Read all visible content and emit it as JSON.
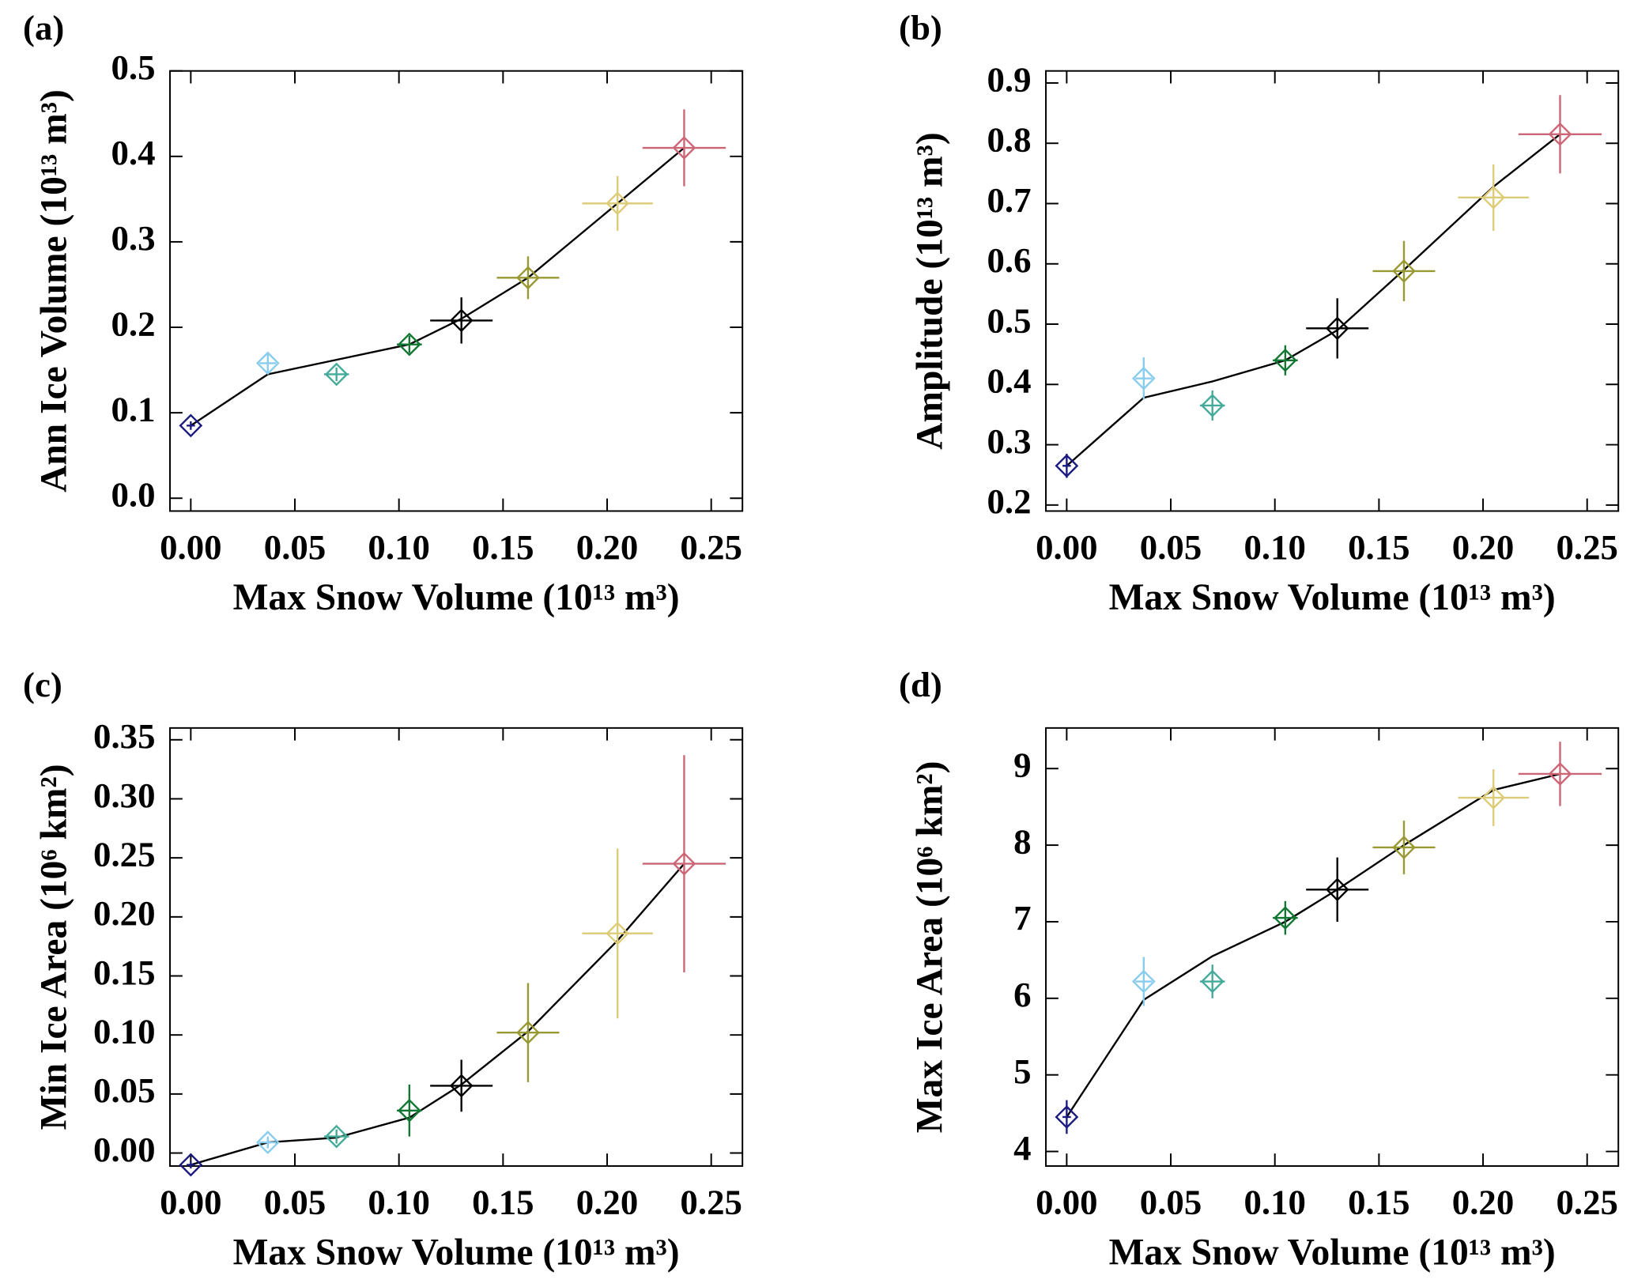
{
  "chart_data": [
    {
      "type": "scatter",
      "panel_label": "(a)",
      "xlabel": "Max Snow Volume (10¹³ m³)",
      "ylabel": "Ann Ice Volume (10¹³ m³)",
      "xlim": [
        -0.01,
        0.265
      ],
      "ylim": [
        -0.015,
        0.5
      ],
      "xticks": [
        {
          "value": 0,
          "label": "0.00"
        },
        0.05,
        {
          "value": 0.1,
          "label": "0.10"
        },
        0.15,
        {
          "value": 0.2,
          "label": "0.20"
        },
        0.25
      ],
      "yticks": [
        {
          "value": 0,
          "label": "0.0"
        },
        0.1,
        0.2,
        0.3,
        0.4,
        0.5
      ],
      "x": [
        0.0,
        0.037,
        0.07,
        0.105,
        0.13,
        0.162,
        0.205,
        0.237
      ],
      "values": [
        0.085,
        0.158,
        0.145,
        0.18,
        0.208,
        0.258,
        0.345,
        0.41
      ],
      "x_errors": [
        0.002,
        0.004,
        0.006,
        0.006,
        0.015,
        0.015,
        0.017,
        0.02
      ],
      "y_errors": [
        0.005,
        0.012,
        0.008,
        0.01,
        0.027,
        0.025,
        0.032,
        0.045
      ],
      "colors": [
        "#1a1a80",
        "#88ccee",
        "#44aa99",
        "#117733",
        "#000000",
        "#999933",
        "#ddcc77",
        "#cc6677"
      ],
      "line": {
        "values": [
          0.085,
          0.145,
          0.162,
          0.18,
          0.21,
          0.258,
          0.345,
          0.41
        ],
        "color": "#000000"
      }
    },
    {
      "type": "scatter",
      "panel_label": "(b)",
      "xlabel": "Max Snow Volume (10¹³ m³)",
      "ylabel": "Amplitude (10¹³ m³)",
      "xlim": [
        -0.01,
        0.265
      ],
      "ylim": [
        0.19,
        0.92
      ],
      "xticks": [
        {
          "value": 0,
          "label": "0.00"
        },
        0.05,
        {
          "value": 0.1,
          "label": "0.10"
        },
        0.15,
        {
          "value": 0.2,
          "label": "0.20"
        },
        0.25
      ],
      "yticks": [
        0.2,
        0.3,
        0.4,
        0.5,
        0.6,
        0.7,
        0.8,
        0.9
      ],
      "x": [
        0.0,
        0.037,
        0.07,
        0.105,
        0.13,
        0.162,
        0.205,
        0.237
      ],
      "values": [
        0.265,
        0.41,
        0.365,
        0.44,
        0.493,
        0.588,
        0.71,
        0.815
      ],
      "x_errors": [
        0.002,
        0.004,
        0.006,
        0.006,
        0.015,
        0.015,
        0.017,
        0.02
      ],
      "y_errors": [
        0.02,
        0.035,
        0.025,
        0.025,
        0.05,
        0.05,
        0.055,
        0.065
      ],
      "colors": [
        "#1a1a80",
        "#88ccee",
        "#44aa99",
        "#117733",
        "#000000",
        "#999933",
        "#ddcc77",
        "#cc6677"
      ],
      "line": {
        "values": [
          0.265,
          0.378,
          0.405,
          0.44,
          0.49,
          0.59,
          0.728,
          0.815
        ],
        "color": "#000000"
      }
    },
    {
      "type": "scatter",
      "panel_label": "(c)",
      "xlabel": "Max Snow Volume (10¹³ m³)",
      "ylabel": "Min Ice Area (10⁶ km²)",
      "xlim": [
        -0.01,
        0.265
      ],
      "ylim": [
        -0.011,
        0.36
      ],
      "xticks": [
        {
          "value": 0,
          "label": "0.00"
        },
        0.05,
        {
          "value": 0.1,
          "label": "0.10"
        },
        0.15,
        {
          "value": 0.2,
          "label": "0.20"
        },
        0.25
      ],
      "yticks": [
        {
          "value": 0,
          "label": "0.00"
        },
        0.05,
        {
          "value": 0.1,
          "label": "0.10"
        },
        0.15,
        {
          "value": 0.2,
          "label": "0.20"
        },
        0.25,
        {
          "value": 0.3,
          "label": "0.30"
        },
        0.35
      ],
      "x": [
        0.0,
        0.037,
        0.07,
        0.105,
        0.13,
        0.162,
        0.205,
        0.237
      ],
      "values": [
        -0.01,
        0.009,
        0.014,
        0.036,
        0.057,
        0.102,
        0.186,
        0.245
      ],
      "x_errors": [
        0.002,
        0.004,
        0.006,
        0.006,
        0.015,
        0.015,
        0.017,
        0.02
      ],
      "y_errors": [
        0.003,
        0.005,
        0.006,
        0.022,
        0.022,
        0.042,
        0.072,
        0.092
      ],
      "colors": [
        "#1a1a80",
        "#88ccee",
        "#44aa99",
        "#117733",
        "#000000",
        "#999933",
        "#ddcc77",
        "#cc6677"
      ],
      "line": {
        "values": [
          -0.01,
          0.009,
          0.013,
          0.03,
          0.058,
          0.103,
          0.18,
          0.245
        ],
        "color": "#000000"
      }
    },
    {
      "type": "scatter",
      "panel_label": "(d)",
      "xlabel": "Max Snow Volume (10¹³ m³)",
      "ylabel": "Max Ice Area (10⁶ km²)",
      "xlim": [
        -0.01,
        0.265
      ],
      "ylim": [
        3.81,
        9.53
      ],
      "xticks": [
        {
          "value": 0,
          "label": "0.00"
        },
        0.05,
        {
          "value": 0.1,
          "label": "0.10"
        },
        0.15,
        {
          "value": 0.2,
          "label": "0.20"
        },
        0.25
      ],
      "yticks": [
        4,
        5,
        6,
        7,
        8,
        9
      ],
      "x": [
        0.0,
        0.037,
        0.07,
        0.105,
        0.13,
        0.162,
        0.205,
        0.237
      ],
      "values": [
        4.45,
        6.22,
        6.22,
        7.05,
        7.42,
        7.97,
        8.62,
        8.93
      ],
      "x_errors": [
        0.002,
        0.004,
        0.006,
        0.006,
        0.015,
        0.015,
        0.017,
        0.02
      ],
      "y_errors": [
        0.22,
        0.32,
        0.22,
        0.22,
        0.42,
        0.35,
        0.37,
        0.42
      ],
      "colors": [
        "#1a1a80",
        "#88ccee",
        "#44aa99",
        "#117733",
        "#000000",
        "#999933",
        "#ddcc77",
        "#cc6677"
      ],
      "line": {
        "values": [
          4.45,
          5.98,
          6.55,
          7.0,
          7.42,
          8.0,
          8.72,
          8.93
        ],
        "color": "#000000"
      }
    }
  ]
}
